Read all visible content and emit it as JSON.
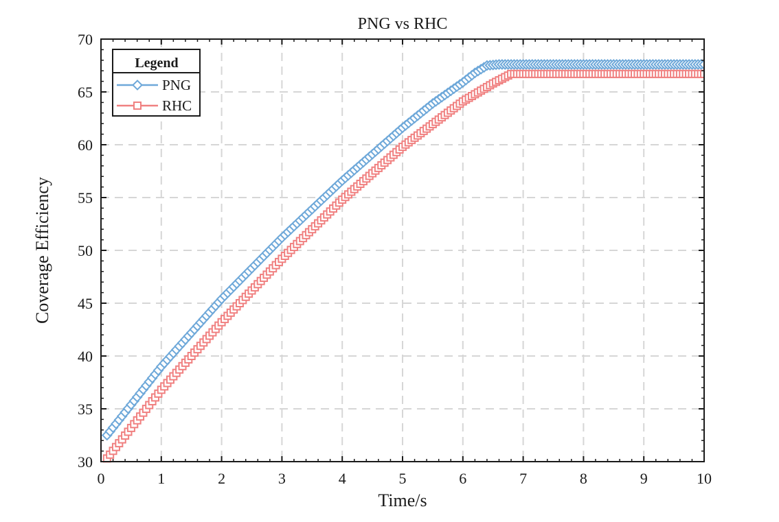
{
  "chart_data": {
    "type": "line",
    "title": "PNG vs RHC",
    "xlabel": "Time/s",
    "ylabel": "Coverage Efficiency",
    "xlim": [
      0,
      10
    ],
    "ylim": [
      30,
      70
    ],
    "x_ticks": [
      0,
      1,
      2,
      3,
      4,
      5,
      6,
      7,
      8,
      9,
      10
    ],
    "y_ticks": [
      30,
      35,
      40,
      45,
      50,
      55,
      60,
      65,
      70
    ],
    "grid": true,
    "legend": {
      "title": "Legend",
      "position": "top-left"
    },
    "series": [
      {
        "name": "PNG",
        "color": "#6ea8d9",
        "marker": "diamond",
        "x": [
          0.1,
          1,
          2,
          3,
          4,
          5,
          5.5,
          6,
          6.2,
          6.4,
          6.6,
          10
        ],
        "y": [
          32.5,
          39,
          45.4,
          51.2,
          56.6,
          61.6,
          63.9,
          65.9,
          66.8,
          67.5,
          67.6,
          67.6
        ]
      },
      {
        "name": "RHC",
        "color": "#f08080",
        "marker": "square",
        "x": [
          0.1,
          1,
          2,
          3,
          4,
          5,
          6,
          6.5,
          6.8,
          10
        ],
        "y": [
          30.3,
          36.8,
          43.2,
          49.2,
          54.8,
          59.8,
          64.1,
          65.8,
          66.7,
          66.7
        ]
      }
    ]
  }
}
